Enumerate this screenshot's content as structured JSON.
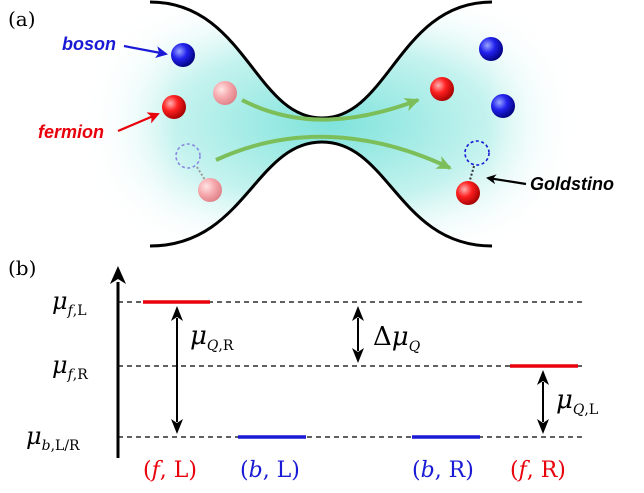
{
  "panel_a": {
    "label": "(a)",
    "callouts": {
      "boson": "boson",
      "fermion": "fermion",
      "goldstino": "Goldstino"
    }
  },
  "panel_b": {
    "label": "(b)",
    "levels": {
      "mu_f_L": {
        "sym": "μ",
        "sub_i": "f",
        "sub_r": ",L"
      },
      "mu_f_R": {
        "sym": "μ",
        "sub_i": "f",
        "sub_r": ",R"
      },
      "mu_b_LR": {
        "sym": "μ",
        "sub_i": "b",
        "sub_r": ",L/R"
      }
    },
    "gaps": {
      "mu_Q_R": {
        "sym": "μ",
        "sub_i": "Q",
        "sub_r": ",R"
      },
      "delta_mu_Q": {
        "pre": "Δ",
        "sym": "μ",
        "sub_i": "Q",
        "sub_r": ""
      },
      "mu_Q_L": {
        "sym": "μ",
        "sub_i": "Q",
        "sub_r": ",L"
      }
    },
    "categories": [
      {
        "open": "(",
        "sym": "f",
        "rest": ", L)",
        "color": "#e8000b"
      },
      {
        "open": "(",
        "sym": "b",
        "rest": ", L)",
        "color": "#1a1ad6"
      },
      {
        "open": "(",
        "sym": "b",
        "rest": ", R)",
        "color": "#1a1ad6"
      },
      {
        "open": "(",
        "sym": "f",
        "rest": ", R)",
        "color": "#e8000b"
      }
    ]
  },
  "colors": {
    "boson": "#1a1ad6",
    "fermion": "#e8000b",
    "fermion_faded": "#f4a3a8",
    "channel_fill": "#b8f0ec",
    "flow_arrow": "#7cbf5a",
    "goldstino_ring": "#1a1ad6",
    "level_fermion": "#e8000b",
    "level_boson": "#1a1ad6"
  }
}
